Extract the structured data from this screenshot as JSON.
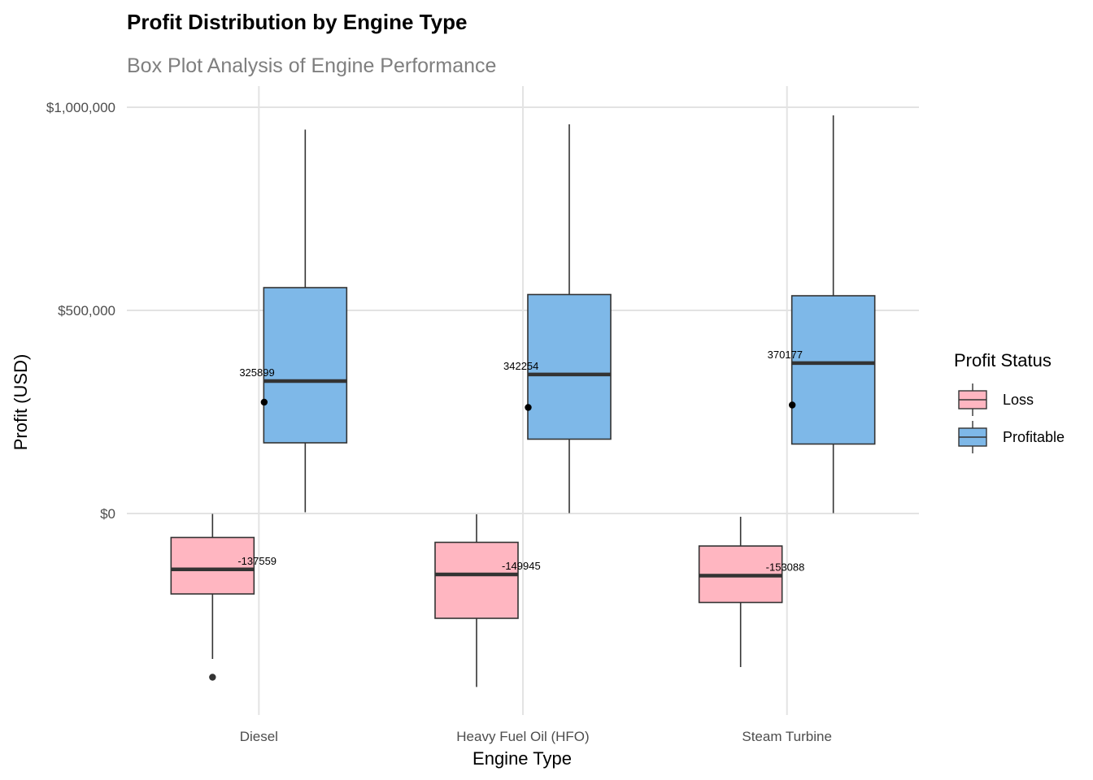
{
  "chart_data": {
    "type": "box",
    "title": "Profit Distribution by Engine Type",
    "subtitle": "Box Plot Analysis of Engine Performance",
    "xlabel": "Engine Type",
    "ylabel": "Profit (USD)",
    "ylim": [
      -480000,
      1030000
    ],
    "yticks": [
      {
        "value": 0,
        "label": "$0"
      },
      {
        "value": 500000,
        "label": "$500,000"
      },
      {
        "value": 1000000,
        "label": "$1,000,000"
      }
    ],
    "categories": [
      "Diesel",
      "Heavy Fuel Oil (HFO)",
      "Steam Turbine"
    ],
    "grid": true,
    "legend": {
      "title": "Profit Status",
      "position": "right",
      "entries": [
        "Loss",
        "Profitable"
      ]
    },
    "series": [
      {
        "name": "Loss",
        "color": "#FFB6C1",
        "boxes": [
          {
            "min": -358000,
            "q1": -198000,
            "median": -137559,
            "q3": -59000,
            "max": -1000,
            "outliers": [
              -403000
            ],
            "mean": null,
            "median_label": "-137559"
          },
          {
            "min": -427000,
            "q1": -258000,
            "median": -149945,
            "q3": -71000,
            "max": -2000,
            "outliers": [],
            "mean": null,
            "median_label": "-149945"
          },
          {
            "min": -378000,
            "q1": -219000,
            "median": -153088,
            "q3": -80000,
            "max": -8000,
            "outliers": [],
            "mean": null,
            "median_label": "-153088"
          }
        ]
      },
      {
        "name": "Profitable",
        "color": "#7EB8E8",
        "boxes": [
          {
            "min": 3000,
            "q1": 174000,
            "median": 325899,
            "q3": 556000,
            "max": 945000,
            "outliers": [],
            "mean": 274000,
            "median_label": "325899"
          },
          {
            "min": 1000,
            "q1": 183000,
            "median": 342254,
            "q3": 539000,
            "max": 958000,
            "outliers": [],
            "mean": 261000,
            "median_label": "342254"
          },
          {
            "min": 1000,
            "q1": 171000,
            "median": 370177,
            "q3": 536000,
            "max": 980000,
            "outliers": [],
            "mean": 267000,
            "median_label": "370177"
          }
        ]
      }
    ]
  }
}
